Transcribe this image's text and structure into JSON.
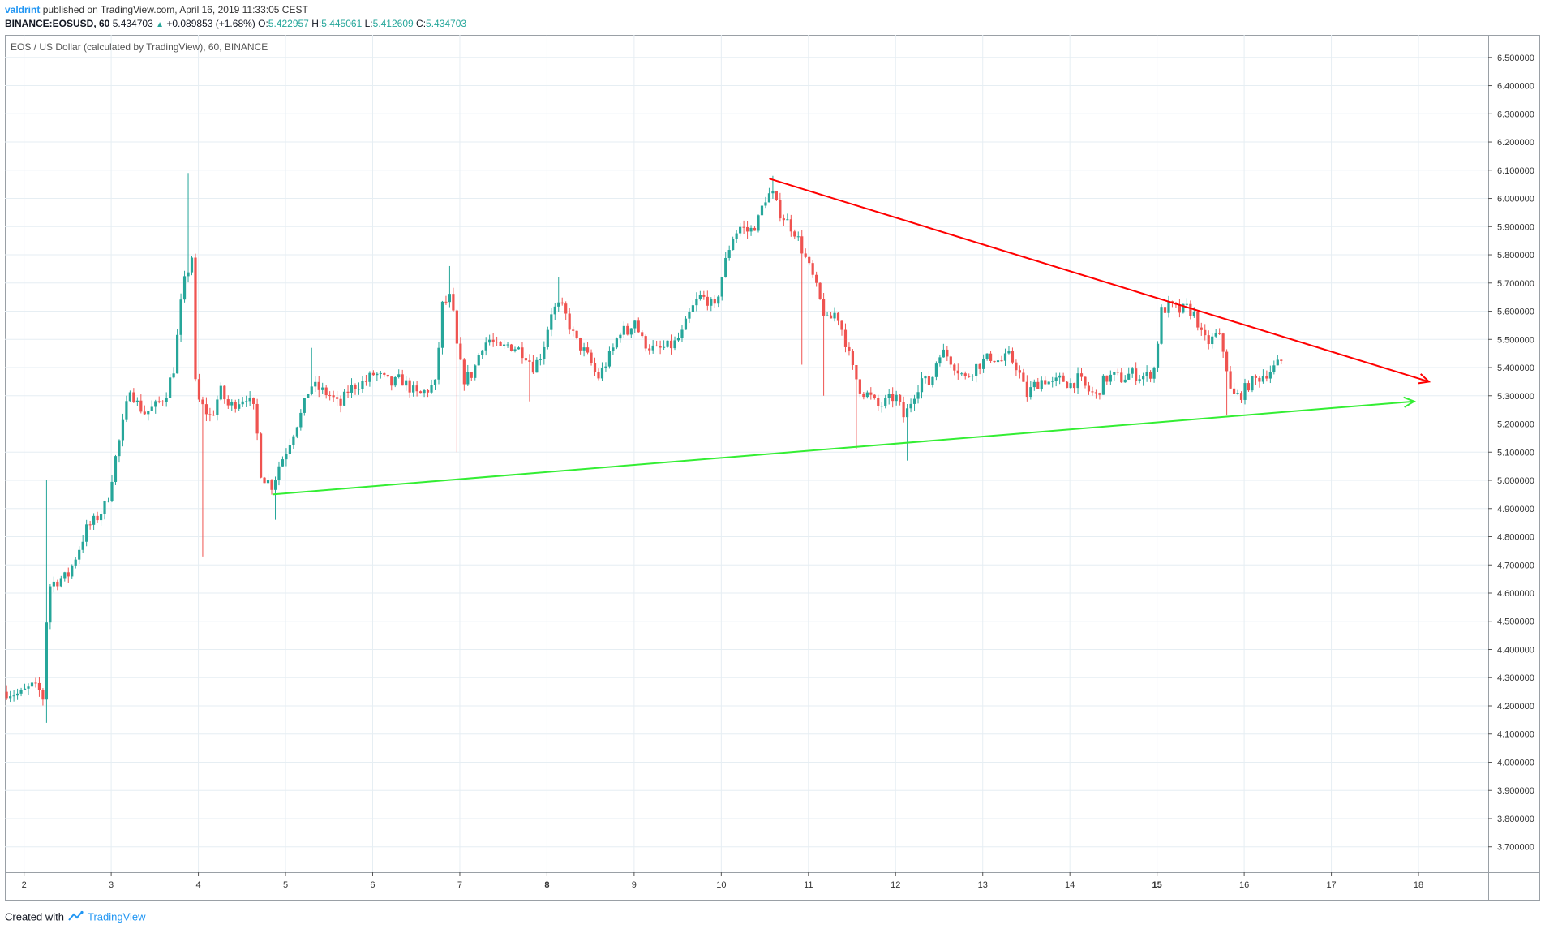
{
  "header": {
    "author": "valdrint",
    "text": "published on TradingView.com, April 16, 2019 11:33:05 CEST"
  },
  "quote": {
    "symbol": "BINANCE:EOSUSD, 60",
    "last": "5.434703",
    "change": "+0.089853 (+1.68%)",
    "o_label": "O:",
    "o": "5.422957",
    "h_label": "H:",
    "h": "5.445061",
    "l_label": "L:",
    "l": "5.412609",
    "c_label": "C:",
    "c": "5.434703"
  },
  "footer": {
    "created_with": "Created with",
    "brand": "TradingView"
  },
  "colors": {
    "up": "#26a69a",
    "down": "#ef5350",
    "resistance": "#ff0000",
    "support": "#33ee33",
    "grid": "#e6eef3",
    "axis": "#555555"
  },
  "chart_data": {
    "type": "candlestick",
    "title": "EOS / US Dollar (calculated by TradingView), 60, BINANCE",
    "x_ticks": [
      "2",
      "3",
      "4",
      "5",
      "6",
      "7",
      "8",
      "9",
      "10",
      "11",
      "12",
      "13",
      "14",
      "15",
      "16",
      "17",
      "18"
    ],
    "x_tick_values": [
      2,
      3,
      4,
      5,
      6,
      7,
      8,
      9,
      10,
      11,
      12,
      13,
      14,
      15,
      16,
      17,
      18
    ],
    "bold_x_ticks": [
      "8",
      "15"
    ],
    "xlim": [
      1.78,
      18.8
    ],
    "y_ticks": [
      "3.700000",
      "3.800000",
      "3.900000",
      "4.000000",
      "4.100000",
      "4.200000",
      "4.300000",
      "4.400000",
      "4.500000",
      "4.600000",
      "4.700000",
      "4.800000",
      "4.900000",
      "5.000000",
      "5.100000",
      "5.200000",
      "5.300000",
      "5.400000",
      "5.500000",
      "5.600000",
      "5.700000",
      "5.800000",
      "5.900000",
      "6.000000",
      "6.100000",
      "6.200000",
      "6.300000",
      "6.400000",
      "6.500000"
    ],
    "ylim": [
      3.61,
      6.58
    ],
    "anchors": [
      [
        1.8,
        4.25
      ],
      [
        1.95,
        4.24
      ],
      [
        2.1,
        4.27
      ],
      [
        2.18,
        4.25
      ],
      [
        2.23,
        4.22
      ],
      [
        2.27,
        4.62
      ],
      [
        2.35,
        4.64
      ],
      [
        2.5,
        4.66
      ],
      [
        2.62,
        4.75
      ],
      [
        2.72,
        4.83
      ],
      [
        2.82,
        4.86
      ],
      [
        2.95,
        4.92
      ],
      [
        3.05,
        5.08
      ],
      [
        3.15,
        5.22
      ],
      [
        3.22,
        5.34
      ],
      [
        3.28,
        5.28
      ],
      [
        3.38,
        5.24
      ],
      [
        3.5,
        5.26
      ],
      [
        3.62,
        5.3
      ],
      [
        3.72,
        5.4
      ],
      [
        3.82,
        5.68
      ],
      [
        3.93,
        5.8
      ],
      [
        3.97,
        5.3
      ],
      [
        4.05,
        5.26
      ],
      [
        4.15,
        5.22
      ],
      [
        4.25,
        5.32
      ],
      [
        4.35,
        5.26
      ],
      [
        4.45,
        5.28
      ],
      [
        4.55,
        5.3
      ],
      [
        4.65,
        5.24
      ],
      [
        4.72,
        5.02
      ],
      [
        4.85,
        4.98
      ],
      [
        4.92,
        5.05
      ],
      [
        5.0,
        5.1
      ],
      [
        5.1,
        5.18
      ],
      [
        5.2,
        5.25
      ],
      [
        5.28,
        5.34
      ],
      [
        5.4,
        5.32
      ],
      [
        5.52,
        5.3
      ],
      [
        5.62,
        5.26
      ],
      [
        5.72,
        5.32
      ],
      [
        5.82,
        5.34
      ],
      [
        5.92,
        5.35
      ],
      [
        6.02,
        5.38
      ],
      [
        6.12,
        5.36
      ],
      [
        6.22,
        5.34
      ],
      [
        6.32,
        5.36
      ],
      [
        6.42,
        5.33
      ],
      [
        6.52,
        5.3
      ],
      [
        6.62,
        5.32
      ],
      [
        6.72,
        5.34
      ],
      [
        6.8,
        5.62
      ],
      [
        6.9,
        5.65
      ],
      [
        6.98,
        5.44
      ],
      [
        7.05,
        5.36
      ],
      [
        7.15,
        5.38
      ],
      [
        7.25,
        5.48
      ],
      [
        7.35,
        5.5
      ],
      [
        7.45,
        5.46
      ],
      [
        7.55,
        5.48
      ],
      [
        7.65,
        5.47
      ],
      [
        7.75,
        5.45
      ],
      [
        7.85,
        5.4
      ],
      [
        7.95,
        5.46
      ],
      [
        8.05,
        5.6
      ],
      [
        8.15,
        5.62
      ],
      [
        8.22,
        5.58
      ],
      [
        8.32,
        5.5
      ],
      [
        8.42,
        5.46
      ],
      [
        8.5,
        5.42
      ],
      [
        8.58,
        5.36
      ],
      [
        8.65,
        5.4
      ],
      [
        8.75,
        5.46
      ],
      [
        8.85,
        5.54
      ],
      [
        8.92,
        5.52
      ],
      [
        9.0,
        5.58
      ],
      [
        9.08,
        5.5
      ],
      [
        9.15,
        5.48
      ],
      [
        9.25,
        5.46
      ],
      [
        9.35,
        5.47
      ],
      [
        9.45,
        5.48
      ],
      [
        9.55,
        5.52
      ],
      [
        9.65,
        5.6
      ],
      [
        9.75,
        5.65
      ],
      [
        9.85,
        5.64
      ],
      [
        9.92,
        5.6
      ],
      [
        10.02,
        5.74
      ],
      [
        10.12,
        5.86
      ],
      [
        10.22,
        5.9
      ],
      [
        10.32,
        5.88
      ],
      [
        10.42,
        5.92
      ],
      [
        10.5,
        6.0
      ],
      [
        10.58,
        6.02
      ],
      [
        10.65,
        5.96
      ],
      [
        10.75,
        5.92
      ],
      [
        10.85,
        5.88
      ],
      [
        10.95,
        5.8
      ],
      [
        11.05,
        5.72
      ],
      [
        11.15,
        5.62
      ],
      [
        11.22,
        5.56
      ],
      [
        11.32,
        5.6
      ],
      [
        11.42,
        5.5
      ],
      [
        11.5,
        5.4
      ],
      [
        11.6,
        5.32
      ],
      [
        11.7,
        5.3
      ],
      [
        11.8,
        5.26
      ],
      [
        11.9,
        5.28
      ],
      [
        12.0,
        5.3
      ],
      [
        12.1,
        5.22
      ],
      [
        12.2,
        5.3
      ],
      [
        12.3,
        5.36
      ],
      [
        12.4,
        5.34
      ],
      [
        12.5,
        5.46
      ],
      [
        12.6,
        5.44
      ],
      [
        12.7,
        5.4
      ],
      [
        12.8,
        5.36
      ],
      [
        12.9,
        5.4
      ],
      [
        13.0,
        5.42
      ],
      [
        13.1,
        5.44
      ],
      [
        13.2,
        5.42
      ],
      [
        13.3,
        5.44
      ],
      [
        13.4,
        5.4
      ],
      [
        13.5,
        5.3
      ],
      [
        13.6,
        5.34
      ],
      [
        13.7,
        5.36
      ],
      [
        13.8,
        5.34
      ],
      [
        13.9,
        5.36
      ],
      [
        14.0,
        5.34
      ],
      [
        14.1,
        5.36
      ],
      [
        14.2,
        5.32
      ],
      [
        14.3,
        5.3
      ],
      [
        14.4,
        5.36
      ],
      [
        14.5,
        5.37
      ],
      [
        14.6,
        5.36
      ],
      [
        14.7,
        5.38
      ],
      [
        14.8,
        5.37
      ],
      [
        14.9,
        5.37
      ],
      [
        14.97,
        5.4
      ],
      [
        15.05,
        5.6
      ],
      [
        15.15,
        5.62
      ],
      [
        15.25,
        5.6
      ],
      [
        15.35,
        5.61
      ],
      [
        15.45,
        5.58
      ],
      [
        15.52,
        5.5
      ],
      [
        15.6,
        5.49
      ],
      [
        15.7,
        5.52
      ],
      [
        15.78,
        5.44
      ],
      [
        15.85,
        5.3
      ],
      [
        15.95,
        5.3
      ],
      [
        16.05,
        5.34
      ],
      [
        16.15,
        5.36
      ],
      [
        16.25,
        5.38
      ],
      [
        16.35,
        5.4
      ],
      [
        16.45,
        5.43
      ]
    ],
    "spikes": [
      {
        "t": 2.25,
        "low": 4.14
      },
      {
        "t": 2.27,
        "high": 5.0
      },
      {
        "t": 3.9,
        "high": 6.09
      },
      {
        "t": 4.03,
        "low": 4.73
      },
      {
        "t": 4.88,
        "low": 4.86
      },
      {
        "t": 5.28,
        "high": 5.47
      },
      {
        "t": 6.95,
        "low": 5.1
      },
      {
        "t": 6.88,
        "high": 5.76
      },
      {
        "t": 7.78,
        "low": 5.28
      },
      {
        "t": 8.12,
        "high": 5.72
      },
      {
        "t": 10.58,
        "high": 6.08
      },
      {
        "t": 10.92,
        "low": 5.41
      },
      {
        "t": 11.18,
        "low": 5.3
      },
      {
        "t": 11.55,
        "low": 5.11
      },
      {
        "t": 12.12,
        "low": 5.07
      },
      {
        "t": 15.8,
        "low": 5.23
      }
    ],
    "drawings": [
      {
        "name": "resistance-trendline",
        "color": "#ff0000",
        "from": [
          10.55,
          6.07
        ],
        "to": [
          18.12,
          5.35
        ],
        "arrow": true
      },
      {
        "name": "support-trendline",
        "color": "#33ee33",
        "from": [
          4.85,
          4.95
        ],
        "to": [
          17.95,
          5.28
        ],
        "arrow": true
      }
    ]
  }
}
